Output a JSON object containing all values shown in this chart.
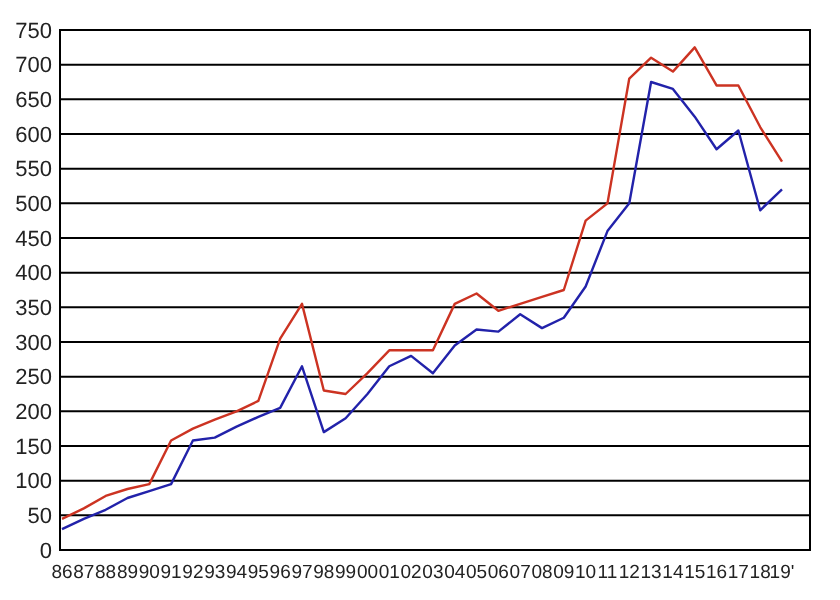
{
  "chart_data": {
    "type": "line",
    "categories": [
      "86",
      "87",
      "88",
      "89",
      "90",
      "91",
      "92",
      "93",
      "94",
      "95",
      "96",
      "97",
      "98",
      "99",
      "00",
      "01",
      "02",
      "03",
      "04",
      "05",
      "06",
      "07",
      "08",
      "09",
      "10",
      "11",
      "12",
      "13",
      "14",
      "15",
      "16",
      "17",
      "18",
      "19'"
    ],
    "series": [
      {
        "color": "#cc3322",
        "values": [
          45,
          60,
          78,
          88,
          95,
          158,
          175,
          188,
          200,
          215,
          305,
          355,
          230,
          225,
          255,
          288,
          288,
          288,
          355,
          370,
          345,
          355,
          365,
          375,
          475,
          500,
          680,
          710,
          690,
          725,
          670,
          670,
          610,
          560
        ]
      },
      {
        "color": "#2222aa",
        "values": [
          30,
          45,
          58,
          75,
          85,
          95,
          158,
          162,
          178,
          192,
          205,
          265,
          170,
          190,
          225,
          265,
          280,
          255,
          295,
          318,
          315,
          340,
          320,
          335,
          380,
          460,
          500,
          675,
          665,
          625,
          578,
          605,
          490,
          520
        ]
      }
    ],
    "ylim": [
      0,
      750
    ],
    "yticks": [
      0,
      50,
      100,
      150,
      200,
      250,
      300,
      350,
      400,
      450,
      500,
      550,
      600,
      650,
      700,
      750
    ],
    "grid": "y",
    "marker": "none",
    "line_style": "solid"
  }
}
